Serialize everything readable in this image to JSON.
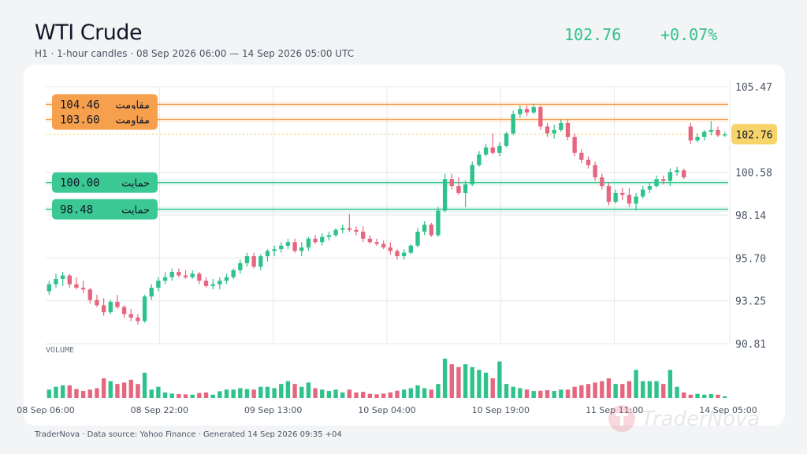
{
  "header": {
    "title": "WTI Crude",
    "subtitle": "H1 · 1-hour candles · 08 Sep 2026 06:00 — 14 Sep 2026 05:00 UTC",
    "price": "102.76",
    "change": "+0.07%"
  },
  "footer": {
    "text": "TraderNova · Data source: Yahoo Finance · Generated 14 Sep 2026 09:35 +04"
  },
  "watermark": {
    "text": "TraderNova"
  },
  "colors": {
    "up": "#2fc28c",
    "down": "#e5677f",
    "resistance": "#f6a04d",
    "support": "#3cc894",
    "last_price_tag": "#f7d46a",
    "grid": "#e5e7eb"
  },
  "chart_data": {
    "type": "candlestick",
    "instrument": "WTI Crude",
    "timeframe": "H1",
    "last_price": 102.76,
    "ylim": [
      90.81,
      105.47
    ],
    "y_ticks": [
      "105.47",
      "100.58",
      "98.14",
      "95.70",
      "93.25",
      "90.81"
    ],
    "x_ticks": [
      "08 Sep 06:00",
      "08 Sep 22:00",
      "09 Sep 13:00",
      "10 Sep 04:00",
      "10 Sep 19:00",
      "11 Sep 11:00",
      "14 Sep 05:00"
    ],
    "volume_label": "VOLUME",
    "levels": [
      {
        "type": "resistance",
        "label": "مقاومت",
        "value": "104.46",
        "price": 104.46
      },
      {
        "type": "resistance",
        "label": "مقاومت",
        "value": "103.60",
        "price": 103.6
      },
      {
        "type": "support",
        "label": "حمایت",
        "value": "100.00",
        "price": 100.0
      },
      {
        "type": "support",
        "label": "حمایت",
        "value": "98.48",
        "price": 98.48
      }
    ],
    "candles": [
      {
        "o": 93.8,
        "h": 94.4,
        "l": 93.6,
        "c": 94.2,
        "v": 3
      },
      {
        "o": 94.2,
        "h": 94.8,
        "l": 94.0,
        "c": 94.5,
        "v": 4
      },
      {
        "o": 94.5,
        "h": 94.9,
        "l": 94.1,
        "c": 94.7,
        "v": 4.5
      },
      {
        "o": 94.7,
        "h": 94.8,
        "l": 94.0,
        "c": 94.2,
        "v": 4.5
      },
      {
        "o": 94.2,
        "h": 94.6,
        "l": 93.9,
        "c": 94.0,
        "v": 3.2
      },
      {
        "o": 94.0,
        "h": 94.4,
        "l": 93.7,
        "c": 93.9,
        "v": 2.5
      },
      {
        "o": 93.9,
        "h": 94.0,
        "l": 93.1,
        "c": 93.3,
        "v": 3
      },
      {
        "o": 93.3,
        "h": 93.6,
        "l": 92.9,
        "c": 93.0,
        "v": 3.5
      },
      {
        "o": 93.0,
        "h": 93.4,
        "l": 92.4,
        "c": 92.6,
        "v": 7
      },
      {
        "o": 92.6,
        "h": 93.3,
        "l": 92.5,
        "c": 93.2,
        "v": 6
      },
      {
        "o": 93.2,
        "h": 93.6,
        "l": 92.8,
        "c": 92.9,
        "v": 5
      },
      {
        "o": 92.9,
        "h": 93.0,
        "l": 92.3,
        "c": 92.5,
        "v": 5.5
      },
      {
        "o": 92.5,
        "h": 92.8,
        "l": 92.1,
        "c": 92.3,
        "v": 6.5
      },
      {
        "o": 92.3,
        "h": 92.5,
        "l": 91.9,
        "c": 92.1,
        "v": 5
      },
      {
        "o": 92.1,
        "h": 93.6,
        "l": 92.0,
        "c": 93.5,
        "v": 9
      },
      {
        "o": 93.5,
        "h": 94.2,
        "l": 93.3,
        "c": 94.0,
        "v": 3
      },
      {
        "o": 94.0,
        "h": 94.6,
        "l": 93.8,
        "c": 94.4,
        "v": 4
      },
      {
        "o": 94.4,
        "h": 94.9,
        "l": 94.2,
        "c": 94.6,
        "v": 2
      },
      {
        "o": 94.6,
        "h": 95.1,
        "l": 94.4,
        "c": 94.9,
        "v": 1.6
      },
      {
        "o": 94.9,
        "h": 95.1,
        "l": 94.6,
        "c": 94.7,
        "v": 1.4
      },
      {
        "o": 94.7,
        "h": 95.0,
        "l": 94.5,
        "c": 94.6,
        "v": 1.3
      },
      {
        "o": 94.6,
        "h": 95.0,
        "l": 94.5,
        "c": 94.8,
        "v": 1.2
      },
      {
        "o": 94.8,
        "h": 94.9,
        "l": 94.2,
        "c": 94.4,
        "v": 1.8
      },
      {
        "o": 94.4,
        "h": 94.6,
        "l": 94.0,
        "c": 94.1,
        "v": 2
      },
      {
        "o": 94.1,
        "h": 94.5,
        "l": 93.9,
        "c": 94.2,
        "v": 1.2
      },
      {
        "o": 94.2,
        "h": 94.6,
        "l": 93.9,
        "c": 94.4,
        "v": 2.4
      },
      {
        "o": 94.4,
        "h": 94.8,
        "l": 94.2,
        "c": 94.6,
        "v": 3
      },
      {
        "o": 94.6,
        "h": 95.1,
        "l": 94.5,
        "c": 95.0,
        "v": 3
      },
      {
        "o": 95.0,
        "h": 95.6,
        "l": 94.8,
        "c": 95.4,
        "v": 3.5
      },
      {
        "o": 95.4,
        "h": 96.0,
        "l": 95.2,
        "c": 95.8,
        "v": 3.2
      },
      {
        "o": 95.8,
        "h": 96.0,
        "l": 95.1,
        "c": 95.2,
        "v": 3
      },
      {
        "o": 95.2,
        "h": 95.9,
        "l": 95.0,
        "c": 95.8,
        "v": 4
      },
      {
        "o": 95.8,
        "h": 96.2,
        "l": 95.5,
        "c": 96.1,
        "v": 4
      },
      {
        "o": 96.1,
        "h": 96.4,
        "l": 95.8,
        "c": 96.2,
        "v": 3.5
      },
      {
        "o": 96.2,
        "h": 96.6,
        "l": 96.0,
        "c": 96.4,
        "v": 5
      },
      {
        "o": 96.4,
        "h": 96.8,
        "l": 96.2,
        "c": 96.6,
        "v": 6
      },
      {
        "o": 96.6,
        "h": 96.8,
        "l": 96.0,
        "c": 96.1,
        "v": 5
      },
      {
        "o": 96.1,
        "h": 96.6,
        "l": 95.8,
        "c": 96.3,
        "v": 4
      },
      {
        "o": 96.3,
        "h": 96.9,
        "l": 96.1,
        "c": 96.8,
        "v": 5.5
      },
      {
        "o": 96.8,
        "h": 97.0,
        "l": 96.5,
        "c": 96.6,
        "v": 3.5
      },
      {
        "o": 96.6,
        "h": 97.1,
        "l": 96.4,
        "c": 96.9,
        "v": 3
      },
      {
        "o": 96.9,
        "h": 97.2,
        "l": 96.7,
        "c": 97.0,
        "v": 2.5
      },
      {
        "o": 97.0,
        "h": 97.4,
        "l": 96.9,
        "c": 97.3,
        "v": 3
      },
      {
        "o": 97.3,
        "h": 97.6,
        "l": 97.1,
        "c": 97.4,
        "v": 2
      },
      {
        "o": 97.4,
        "h": 98.2,
        "l": 97.2,
        "c": 97.3,
        "v": 3
      },
      {
        "o": 97.3,
        "h": 97.5,
        "l": 97.0,
        "c": 97.2,
        "v": 2
      },
      {
        "o": 97.2,
        "h": 97.5,
        "l": 96.6,
        "c": 96.8,
        "v": 2.2
      },
      {
        "o": 96.8,
        "h": 97.0,
        "l": 96.5,
        "c": 96.6,
        "v": 1.5
      },
      {
        "o": 96.6,
        "h": 96.8,
        "l": 96.4,
        "c": 96.5,
        "v": 1.3
      },
      {
        "o": 96.5,
        "h": 96.7,
        "l": 96.2,
        "c": 96.3,
        "v": 1.6
      },
      {
        "o": 96.3,
        "h": 96.6,
        "l": 95.9,
        "c": 96.1,
        "v": 2
      },
      {
        "o": 96.1,
        "h": 96.2,
        "l": 95.6,
        "c": 95.8,
        "v": 2.6
      },
      {
        "o": 95.8,
        "h": 96.2,
        "l": 95.6,
        "c": 96.0,
        "v": 3
      },
      {
        "o": 96.0,
        "h": 96.5,
        "l": 95.9,
        "c": 96.4,
        "v": 3.5
      },
      {
        "o": 96.4,
        "h": 97.4,
        "l": 96.3,
        "c": 97.2,
        "v": 4.5
      },
      {
        "o": 97.2,
        "h": 97.8,
        "l": 97.0,
        "c": 97.6,
        "v": 3.5
      },
      {
        "o": 97.6,
        "h": 97.7,
        "l": 96.9,
        "c": 97.0,
        "v": 3
      },
      {
        "o": 97.0,
        "h": 98.6,
        "l": 96.9,
        "c": 98.4,
        "v": 5
      },
      {
        "o": 98.4,
        "h": 100.5,
        "l": 98.3,
        "c": 100.2,
        "v": 14
      },
      {
        "o": 100.2,
        "h": 100.5,
        "l": 99.6,
        "c": 99.8,
        "v": 12
      },
      {
        "o": 99.8,
        "h": 100.3,
        "l": 99.3,
        "c": 99.4,
        "v": 11
      },
      {
        "o": 99.4,
        "h": 100.1,
        "l": 98.6,
        "c": 99.9,
        "v": 12
      },
      {
        "o": 99.9,
        "h": 101.2,
        "l": 99.8,
        "c": 101.0,
        "v": 11
      },
      {
        "o": 101.0,
        "h": 101.8,
        "l": 100.9,
        "c": 101.6,
        "v": 10
      },
      {
        "o": 101.6,
        "h": 102.2,
        "l": 101.5,
        "c": 102.0,
        "v": 9
      },
      {
        "o": 102.0,
        "h": 102.8,
        "l": 101.6,
        "c": 101.7,
        "v": 7
      },
      {
        "o": 101.7,
        "h": 102.3,
        "l": 101.5,
        "c": 102.1,
        "v": 13
      },
      {
        "o": 102.1,
        "h": 102.9,
        "l": 102.0,
        "c": 102.8,
        "v": 5
      },
      {
        "o": 102.8,
        "h": 104.1,
        "l": 102.7,
        "c": 103.9,
        "v": 4
      },
      {
        "o": 103.9,
        "h": 104.4,
        "l": 103.7,
        "c": 104.2,
        "v": 3.5
      },
      {
        "o": 104.2,
        "h": 104.4,
        "l": 103.8,
        "c": 104.0,
        "v": 3
      },
      {
        "o": 104.0,
        "h": 104.5,
        "l": 103.9,
        "c": 104.3,
        "v": 2.5
      },
      {
        "o": 104.3,
        "h": 104.4,
        "l": 103.0,
        "c": 103.2,
        "v": 2.6
      },
      {
        "o": 103.2,
        "h": 103.4,
        "l": 102.6,
        "c": 102.8,
        "v": 2.8
      },
      {
        "o": 102.8,
        "h": 103.3,
        "l": 102.5,
        "c": 103.0,
        "v": 2.5
      },
      {
        "o": 103.0,
        "h": 103.6,
        "l": 102.9,
        "c": 103.4,
        "v": 3
      },
      {
        "o": 103.4,
        "h": 103.6,
        "l": 102.4,
        "c": 102.6,
        "v": 3
      },
      {
        "o": 102.6,
        "h": 102.8,
        "l": 101.5,
        "c": 101.7,
        "v": 4
      },
      {
        "o": 101.7,
        "h": 101.9,
        "l": 101.1,
        "c": 101.3,
        "v": 4.5
      },
      {
        "o": 101.3,
        "h": 101.5,
        "l": 100.8,
        "c": 101.0,
        "v": 5
      },
      {
        "o": 101.0,
        "h": 101.2,
        "l": 100.1,
        "c": 100.3,
        "v": 5.5
      },
      {
        "o": 100.3,
        "h": 100.5,
        "l": 99.6,
        "c": 99.8,
        "v": 6
      },
      {
        "o": 99.8,
        "h": 100.0,
        "l": 98.7,
        "c": 98.9,
        "v": 7
      },
      {
        "o": 98.9,
        "h": 99.6,
        "l": 98.8,
        "c": 99.4,
        "v": 5
      },
      {
        "o": 99.4,
        "h": 99.7,
        "l": 99.0,
        "c": 99.3,
        "v": 5
      },
      {
        "o": 99.3,
        "h": 99.7,
        "l": 98.6,
        "c": 98.8,
        "v": 6
      },
      {
        "o": 98.8,
        "h": 99.4,
        "l": 98.4,
        "c": 99.2,
        "v": 10
      },
      {
        "o": 99.2,
        "h": 99.8,
        "l": 99.1,
        "c": 99.6,
        "v": 6
      },
      {
        "o": 99.6,
        "h": 100.0,
        "l": 99.4,
        "c": 99.8,
        "v": 6
      },
      {
        "o": 99.8,
        "h": 100.4,
        "l": 99.7,
        "c": 100.2,
        "v": 6
      },
      {
        "o": 100.2,
        "h": 100.4,
        "l": 99.9,
        "c": 100.1,
        "v": 5
      },
      {
        "o": 100.1,
        "h": 100.8,
        "l": 99.8,
        "c": 100.6,
        "v": 10
      },
      {
        "o": 100.6,
        "h": 100.9,
        "l": 100.4,
        "c": 100.7,
        "v": 4
      },
      {
        "o": 100.7,
        "h": 100.8,
        "l": 100.2,
        "c": 100.3,
        "v": 2
      },
      {
        "o": 103.2,
        "h": 103.4,
        "l": 102.2,
        "c": 102.4,
        "v": 1.2
      },
      {
        "o": 102.4,
        "h": 102.8,
        "l": 102.3,
        "c": 102.6,
        "v": 1.5
      },
      {
        "o": 102.6,
        "h": 103.0,
        "l": 102.4,
        "c": 102.9,
        "v": 1.2
      },
      {
        "o": 102.9,
        "h": 103.5,
        "l": 102.7,
        "c": 103.0,
        "v": 1.4
      },
      {
        "o": 103.0,
        "h": 103.2,
        "l": 102.6,
        "c": 102.7,
        "v": 1.2
      },
      {
        "o": 102.7,
        "h": 102.9,
        "l": 102.6,
        "c": 102.76,
        "v": 0.6
      }
    ]
  }
}
